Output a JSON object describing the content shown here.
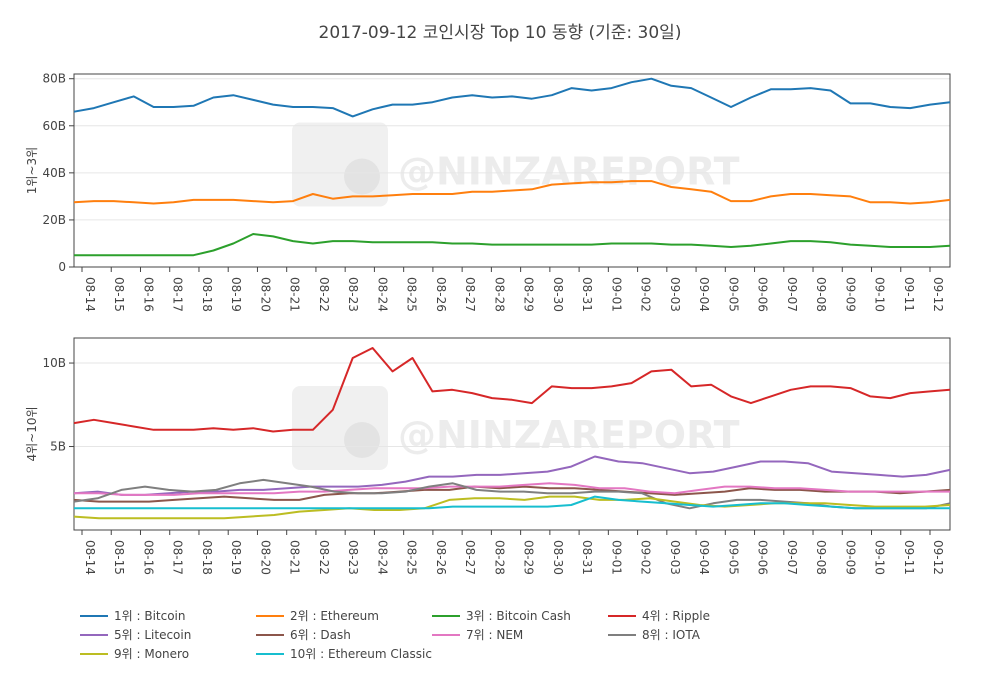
{
  "chart_data": {
    "type": "line",
    "title": "2017-09-12 코인시장 Top 10 동향 (기준: 30일)",
    "watermark": "@NINZAREPORT",
    "x_labels": [
      "08-14",
      "08-15",
      "08-16",
      "08-17",
      "08-18",
      "08-19",
      "08-20",
      "08-21",
      "08-22",
      "08-23",
      "08-24",
      "08-25",
      "08-26",
      "08-27",
      "08-28",
      "08-29",
      "08-30",
      "08-31",
      "09-01",
      "09-02",
      "09-03",
      "09-04",
      "09-05",
      "09-06",
      "09-07",
      "09-08",
      "09-09",
      "09-10",
      "09-11",
      "09-12"
    ],
    "panels": [
      {
        "ylabel": "1위~3위",
        "ylim": [
          0,
          82
        ],
        "yticks": [
          0,
          20,
          40,
          60,
          80
        ],
        "ytick_labels": [
          "0",
          "20B",
          "40B",
          "60B",
          "80B"
        ],
        "series": [
          {
            "name": "1위 : Bitcoin",
            "color": "#1f77b4",
            "values": [
              66,
              67.5,
              70,
              72.5,
              68,
              68,
              68.5,
              72,
              73,
              71,
              69,
              68,
              68,
              67.5,
              64,
              67,
              69,
              69,
              70,
              72,
              73,
              72,
              72.5,
              71.5,
              73,
              76,
              75,
              76,
              78.5,
              80,
              77,
              76,
              72,
              68,
              72,
              75.5,
              75.5,
              76,
              75,
              69.5,
              69.5,
              68,
              67.5,
              69,
              70
            ]
          },
          {
            "name": "2위 : Ethereum",
            "color": "#ff7f0e",
            "values": [
              27.5,
              28,
              28,
              27.5,
              27,
              27.5,
              28.5,
              28.5,
              28.5,
              28,
              27.5,
              28,
              31,
              29,
              30,
              30,
              30.5,
              31,
              31,
              31,
              32,
              32,
              32.5,
              33,
              35,
              35.5,
              36,
              36,
              36.5,
              36.5,
              34,
              33,
              32,
              28,
              28,
              30,
              31,
              31,
              30.5,
              30,
              27.5,
              27.5,
              27,
              27.5,
              28.5
            ]
          },
          {
            "name": "3위 : Bitcoin Cash",
            "color": "#2ca02c",
            "values": [
              5,
              5,
              5,
              5,
              5,
              5,
              5,
              7,
              10,
              14,
              13,
              11,
              10,
              11,
              11,
              10.5,
              10.5,
              10.5,
              10.5,
              10,
              10,
              9.5,
              9.5,
              9.5,
              9.5,
              9.5,
              9.5,
              10,
              10,
              10,
              9.5,
              9.5,
              9,
              8.5,
              9,
              10,
              11,
              11,
              10.5,
              9.5,
              9,
              8.5,
              8.5,
              8.5,
              9
            ]
          }
        ]
      },
      {
        "ylabel": "4위~10위",
        "ylim": [
          0,
          11.5
        ],
        "yticks": [
          5,
          10
        ],
        "ytick_labels": [
          "5B",
          "10B"
        ],
        "series": [
          {
            "name": "4위 : Ripple",
            "color": "#d62728",
            "values": [
              6.4,
              6.6,
              6.4,
              6.2,
              6,
              6,
              6,
              6.1,
              6,
              6.1,
              5.9,
              6,
              6,
              7.2,
              10.3,
              10.9,
              9.5,
              10.3,
              8.3,
              8.4,
              8.2,
              7.9,
              7.8,
              7.6,
              8.6,
              8.5,
              8.5,
              8.6,
              8.8,
              9.5,
              9.6,
              8.6,
              8.7,
              8,
              7.6,
              8,
              8.4,
              8.6,
              8.6,
              8.5,
              8,
              7.9,
              8.2,
              8.3,
              8.4
            ]
          },
          {
            "name": "5위 : Litecoin",
            "color": "#9467bd",
            "values": [
              2.2,
              2.3,
              2.1,
              2.1,
              2.2,
              2.3,
              2.3,
              2.4,
              2.4,
              2.5,
              2.6,
              2.6,
              2.6,
              2.7,
              2.9,
              3.2,
              3.2,
              3.3,
              3.3,
              3.4,
              3.5,
              3.8,
              4.4,
              4.1,
              4,
              3.7,
              3.4,
              3.5,
              3.8,
              4.1,
              4.1,
              4,
              3.5,
              3.4,
              3.3,
              3.2,
              3.3,
              3.6
            ]
          },
          {
            "name": "6위 : Dash",
            "color": "#8c564b",
            "values": [
              1.8,
              1.7,
              1.7,
              1.7,
              1.8,
              1.9,
              2.0,
              1.9,
              1.8,
              1.8,
              2.1,
              2.2,
              2.2,
              2.3,
              2.4,
              2.4,
              2.6,
              2.5,
              2.6,
              2.5,
              2.5,
              2.4,
              2.3,
              2.2,
              2.1,
              2.2,
              2.3,
              2.5,
              2.4,
              2.4,
              2.3,
              2.3,
              2.3,
              2.2,
              2.3,
              2.4
            ]
          },
          {
            "name": "7위 : NEM",
            "color": "#e377c2",
            "values": [
              2.2,
              2.2,
              2.1,
              2.1,
              2.1,
              2.2,
              2.2,
              2.2,
              2.2,
              2.3,
              2.3,
              2.4,
              2.5,
              2.5,
              2.5,
              2.6,
              2.6,
              2.6,
              2.7,
              2.8,
              2.7,
              2.5,
              2.5,
              2.3,
              2.2,
              2.4,
              2.6,
              2.6,
              2.5,
              2.5,
              2.4,
              2.3,
              2.3,
              2.3,
              2.3,
              2.3
            ]
          },
          {
            "name": "8위 : IOTA",
            "color": "#7f7f7f",
            "values": [
              1.7,
              1.9,
              2.4,
              2.6,
              2.4,
              2.3,
              2.4,
              2.8,
              3,
              2.8,
              2.6,
              2.3,
              2.2,
              2.2,
              2.3,
              2.6,
              2.8,
              2.4,
              2.3,
              2.3,
              2.2,
              2.2,
              2.3,
              2.3,
              2.2,
              1.6,
              1.3,
              1.6,
              1.8,
              1.8,
              1.7,
              1.6,
              1.4,
              1.3,
              1.3,
              1.3,
              1.3,
              1.6
            ]
          },
          {
            "name": "9위 : Monero",
            "color": "#bcbd22",
            "values": [
              0.8,
              0.7,
              0.7,
              0.7,
              0.7,
              0.7,
              0.7,
              0.8,
              0.9,
              1.1,
              1.2,
              1.3,
              1.2,
              1.2,
              1.3,
              1.8,
              1.9,
              1.9,
              1.8,
              2,
              2,
              1.8,
              1.8,
              1.9,
              1.7,
              1.5,
              1.4,
              1.5,
              1.6,
              1.6,
              1.6,
              1.5,
              1.4,
              1.4,
              1.4,
              1.5
            ]
          },
          {
            "name": "10위 : Ethereum Classic",
            "color": "#17becf",
            "values": [
              1.3,
              1.3,
              1.3,
              1.3,
              1.3,
              1.3,
              1.3,
              1.3,
              1.3,
              1.3,
              1.3,
              1.3,
              1.3,
              1.3,
              1.3,
              1.3,
              1.4,
              1.4,
              1.4,
              1.4,
              1.4,
              1.5,
              2,
              1.8,
              1.7,
              1.6,
              1.5,
              1.4,
              1.5,
              1.6,
              1.6,
              1.5,
              1.4,
              1.3,
              1.3,
              1.3,
              1.3,
              1.3
            ]
          }
        ]
      }
    ]
  }
}
